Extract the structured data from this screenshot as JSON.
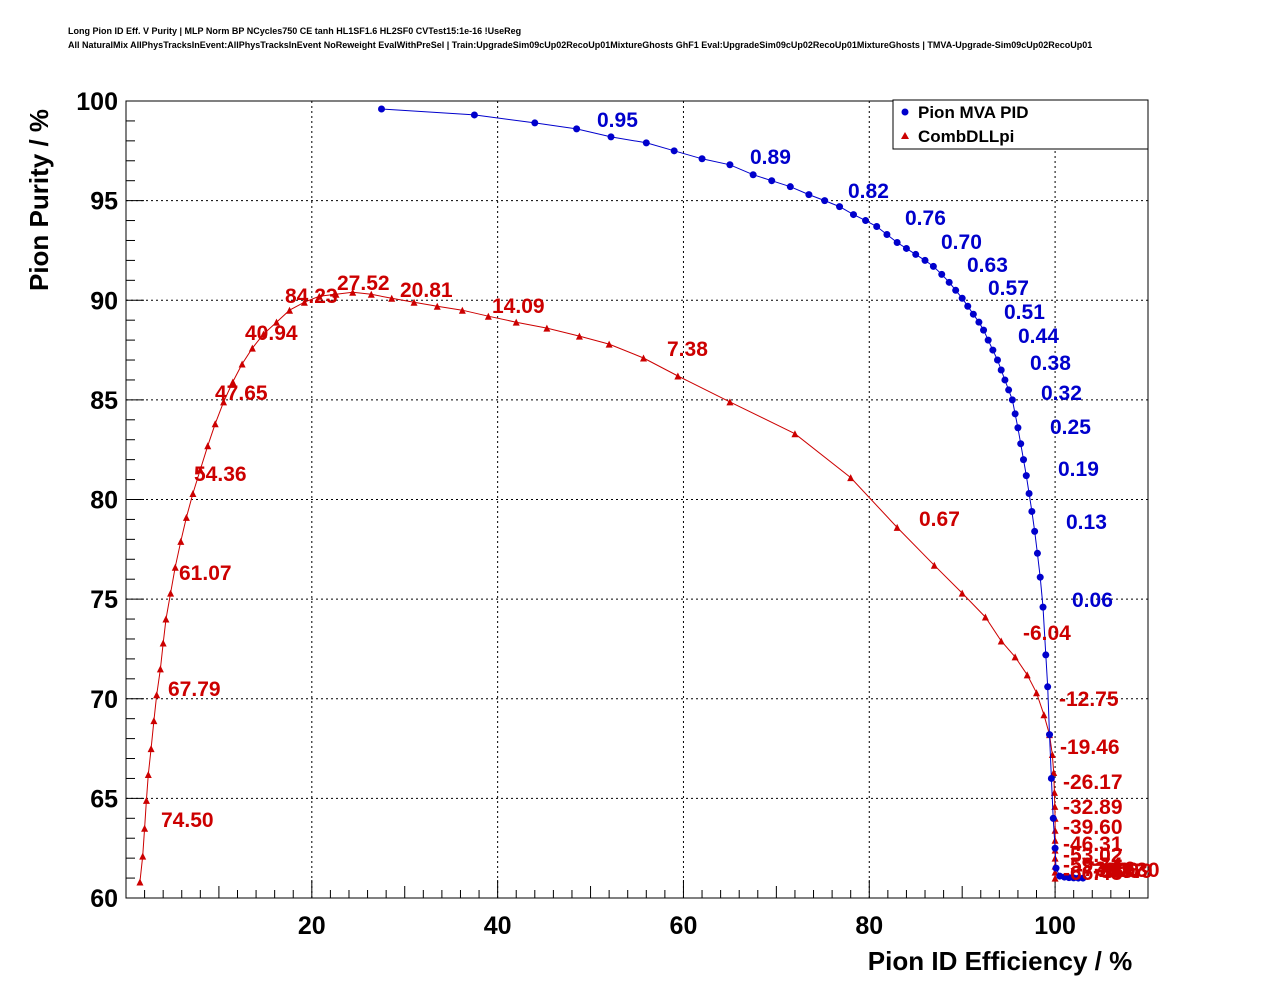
{
  "header": {
    "line1": "Long Pion ID Eff. V Purity | MLP Norm BP NCycles750 CE tanh HL1SF1.6 HL2SF0 CVTest15:1e-16 !UseReg",
    "line2": "All NaturalMix AllPhysTracksInEvent:AllPhysTracksInEvent NoReweight EvalWithPreSel | Train:UpgradeSim09cUp02RecoUp01MixtureGhosts GhF1 Eval:UpgradeSim09cUp02RecoUp01MixtureGhosts | TMVA-Upgrade-Sim09cUp02RecoUp01"
  },
  "chart_data": {
    "type": "line",
    "xlabel": "Pion ID Efficiency / %",
    "ylabel": "Pion Purity / %",
    "xlim": [
      0,
      110
    ],
    "ylim": [
      60,
      100
    ],
    "xticks": [
      20,
      40,
      60,
      80,
      100
    ],
    "yticks": [
      60,
      65,
      70,
      75,
      80,
      85,
      90,
      95,
      100
    ],
    "grid": true,
    "legend": {
      "placement": "top-right",
      "entries": [
        "Pion MVA PID",
        "CombDLLpi"
      ]
    },
    "series": [
      {
        "name": "Pion MVA PID",
        "color": "#0000cc",
        "marker": "circle",
        "x": [
          27.5,
          37.5,
          44,
          48.5,
          52.2,
          56,
          59,
          62,
          65,
          67.5,
          69.5,
          71.5,
          73.5,
          75.2,
          76.8,
          78.3,
          79.6,
          80.8,
          81.9,
          83,
          84,
          85,
          86,
          86.9,
          87.8,
          88.6,
          89.3,
          90,
          90.6,
          91.2,
          91.8,
          92.3,
          92.8,
          93.3,
          93.8,
          94.2,
          94.6,
          95,
          95.4,
          95.7,
          96,
          96.3,
          96.6,
          96.9,
          97.2,
          97.5,
          97.8,
          98.1,
          98.4,
          98.7,
          99,
          99.2,
          99.4,
          99.6,
          99.8,
          100,
          100.1,
          100.5,
          101,
          101.5,
          102,
          102.5,
          103
        ],
        "y": [
          99.6,
          99.3,
          98.9,
          98.6,
          98.2,
          97.9,
          97.5,
          97.1,
          96.8,
          96.3,
          96.0,
          95.7,
          95.3,
          95.0,
          94.7,
          94.3,
          94.0,
          93.7,
          93.3,
          92.9,
          92.6,
          92.3,
          92.0,
          91.7,
          91.3,
          90.9,
          90.5,
          90.1,
          89.7,
          89.3,
          88.9,
          88.5,
          88.0,
          87.5,
          87.0,
          86.5,
          86.0,
          85.5,
          85.0,
          84.3,
          83.6,
          82.8,
          82.0,
          81.2,
          80.3,
          79.4,
          78.4,
          77.3,
          76.1,
          74.6,
          72.2,
          70.6,
          68.2,
          66.0,
          64.0,
          62.5,
          61.5,
          61.1,
          61.05,
          61.02,
          61.01,
          61.0,
          61.0
        ],
        "labels": [
          "0.95",
          "0.89",
          "0.82",
          "0.76",
          "0.70",
          "0.63",
          "0.57",
          "0.51",
          "0.44",
          "0.38",
          "0.32",
          "0.25",
          "0.19",
          "0.13",
          "0.06"
        ]
      },
      {
        "name": "CombDLLpi",
        "color": "#cc0000",
        "marker": "triangle",
        "x": [
          1.5,
          1.8,
          2.0,
          2.2,
          2.4,
          2.7,
          3.0,
          3.3,
          3.7,
          4.0,
          4.3,
          4.8,
          5.3,
          5.9,
          6.5,
          7.2,
          8.0,
          8.8,
          9.6,
          10.5,
          11.5,
          12.5,
          13.6,
          14.8,
          16.2,
          17.6,
          19.2,
          20.8,
          22.6,
          24.4,
          26.4,
          28.6,
          31.0,
          33.5,
          36.2,
          39.0,
          42.0,
          45.3,
          48.8,
          52.0,
          55.7,
          59.4,
          65.0,
          72.0,
          78.0,
          83.0,
          87.0,
          90.0,
          92.5,
          94.2,
          95.7,
          97.0,
          98.0,
          98.8,
          99.4,
          99.7,
          99.85,
          99.93,
          99.97,
          100,
          100,
          100,
          100,
          100,
          100,
          100,
          100
        ],
        "y": [
          60.8,
          62.1,
          63.5,
          64.9,
          66.2,
          67.5,
          68.9,
          70.2,
          71.5,
          72.8,
          74.0,
          75.3,
          76.6,
          77.9,
          79.1,
          80.3,
          81.5,
          82.7,
          83.8,
          84.9,
          85.9,
          86.8,
          87.6,
          88.3,
          88.9,
          89.5,
          89.9,
          90.2,
          90.3,
          90.4,
          90.3,
          90.1,
          89.9,
          89.7,
          89.5,
          89.2,
          88.9,
          88.6,
          88.2,
          87.8,
          87.1,
          86.2,
          84.9,
          83.3,
          81.1,
          78.6,
          76.7,
          75.3,
          74.1,
          72.9,
          72.1,
          71.2,
          70.3,
          69.2,
          68.2,
          67.2,
          66.3,
          65.3,
          64.6,
          64.0,
          63.4,
          62.9,
          62.4,
          62.0,
          61.6,
          61.3,
          61.0
        ],
        "labels": [
          "84.23",
          "27.52",
          "20.81",
          "14.09",
          "40.94",
          "47.65",
          "7.38",
          "54.36",
          "0.67",
          "61.07",
          "-6.04",
          "67.79",
          "-12.75",
          "-19.46",
          "74.50",
          "-26.17",
          "-32.89",
          "-39.60",
          "-46.31",
          "-53.02",
          "-59.74",
          "-66.45",
          "-73.16",
          "-79.87",
          "-86.59",
          "-93.30",
          "-100"
        ]
      }
    ]
  }
}
